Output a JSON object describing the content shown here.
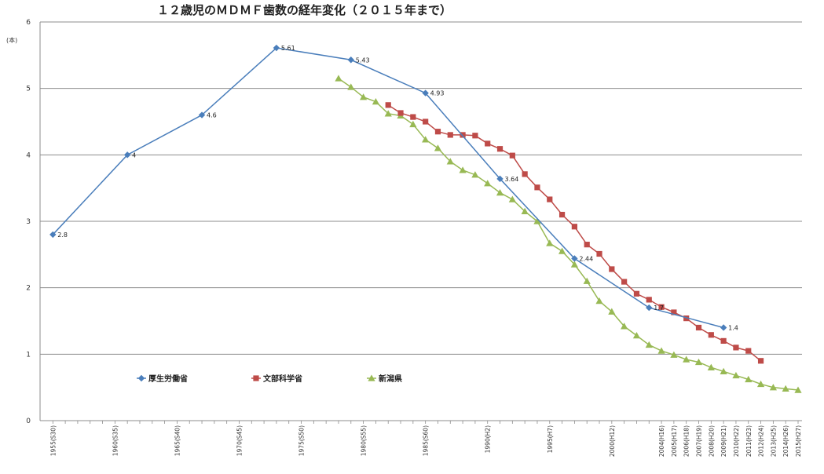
{
  "chart_data": {
    "type": "line",
    "title": "１２歳児のＭＤＭＦ歯数の経年変化（２０１５年まで）",
    "y_unit": "(本)",
    "ylim": [
      0,
      6
    ],
    "y_ticks": [
      0,
      1,
      2,
      3,
      4,
      5,
      6
    ],
    "xlim": [
      1955,
      2015
    ],
    "grid": true,
    "legend_placement": "bottom-left",
    "x_tick_labels": [
      {
        "x": 1955,
        "label": "1955(S30)"
      },
      {
        "x": 1960,
        "label": "1960(S35)"
      },
      {
        "x": 1965,
        "label": "1965(S40)"
      },
      {
        "x": 1970,
        "label": "1970(S45)"
      },
      {
        "x": 1975,
        "label": "1975(S50)"
      },
      {
        "x": 1980,
        "label": "1980(S55)"
      },
      {
        "x": 1985,
        "label": "1985(S60)"
      },
      {
        "x": 1990,
        "label": "1990(H2)"
      },
      {
        "x": 1995,
        "label": "1995(H7)"
      },
      {
        "x": 2000,
        "label": "2000(H12)"
      },
      {
        "x": 2004,
        "label": "2004(H16)"
      },
      {
        "x": 2005,
        "label": "2005(H17)"
      },
      {
        "x": 2006,
        "label": "2006(H18)"
      },
      {
        "x": 2007,
        "label": "2007(H19)"
      },
      {
        "x": 2008,
        "label": "2008(H20)"
      },
      {
        "x": 2009,
        "label": "2009(H21)"
      },
      {
        "x": 2010,
        "label": "2010(H22)"
      },
      {
        "x": 2011,
        "label": "2011(H23)"
      },
      {
        "x": 2012,
        "label": "2012(H24)"
      },
      {
        "x": 2013,
        "label": "2013(H25)"
      },
      {
        "x": 2014,
        "label": "2014(H26)"
      },
      {
        "x": 2015,
        "label": "2015(H27)"
      }
    ],
    "series": [
      {
        "name": "厚生労働省",
        "color": "#4a7ebb",
        "marker": "diamond",
        "x": [
          1955,
          1961,
          1967,
          1973,
          1979,
          1985,
          1991,
          1997,
          2003,
          2009
        ],
        "values": [
          2.8,
          4.0,
          4.6,
          5.61,
          5.43,
          4.93,
          3.64,
          2.44,
          1.7,
          1.4
        ],
        "data_labels": [
          "2.8",
          "4",
          "4.6",
          "5.61",
          "5.43",
          "4.93",
          "3.64",
          "2.44",
          "1.7",
          "1.4"
        ]
      },
      {
        "name": "文部科学省",
        "color": "#be4b48",
        "marker": "square",
        "x": [
          1982,
          1983,
          1984,
          1985,
          1986,
          1987,
          1988,
          1989,
          1990,
          1991,
          1992,
          1993,
          1994,
          1995,
          1996,
          1997,
          1998,
          1999,
          2000,
          2001,
          2002,
          2003,
          2004,
          2005,
          2006,
          2007,
          2008,
          2009,
          2010,
          2011,
          2012
        ],
        "values": [
          4.75,
          4.63,
          4.57,
          4.5,
          4.35,
          4.3,
          4.3,
          4.29,
          4.17,
          4.09,
          3.99,
          3.71,
          3.51,
          3.33,
          3.1,
          2.92,
          2.65,
          2.51,
          2.28,
          2.09,
          1.91,
          1.82,
          1.71,
          1.63,
          1.54,
          1.4,
          1.29,
          1.2,
          1.1,
          1.05,
          0.9
        ]
      },
      {
        "name": "新潟県",
        "color": "#98b954",
        "marker": "triangle",
        "x": [
          1978,
          1979,
          1980,
          1981,
          1982,
          1983,
          1984,
          1985,
          1986,
          1987,
          1988,
          1989,
          1990,
          1991,
          1992,
          1993,
          1994,
          1995,
          1996,
          1997,
          1998,
          1999,
          2000,
          2001,
          2002,
          2003,
          2004,
          2005,
          2006,
          2007,
          2008,
          2009,
          2010,
          2011,
          2012,
          2013,
          2014,
          2015
        ],
        "values": [
          5.15,
          5.02,
          4.87,
          4.8,
          4.62,
          4.59,
          4.46,
          4.23,
          4.1,
          3.9,
          3.77,
          3.7,
          3.57,
          3.43,
          3.33,
          3.15,
          3.0,
          2.67,
          2.55,
          2.35,
          2.1,
          1.8,
          1.64,
          1.42,
          1.28,
          1.14,
          1.05,
          0.99,
          0.92,
          0.88,
          0.8,
          0.74,
          0.68,
          0.62,
          0.55,
          0.5,
          0.48,
          0.46
        ]
      }
    ]
  }
}
